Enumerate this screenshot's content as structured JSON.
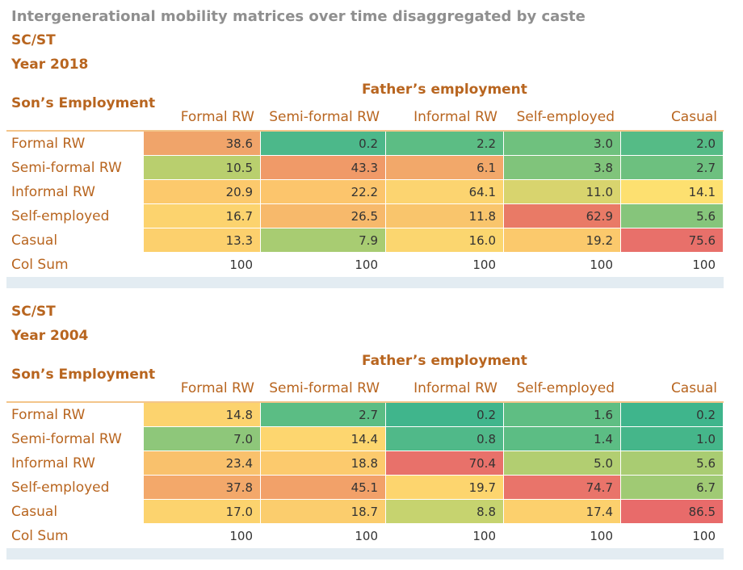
{
  "title": "Intergenerational mobility matrices over time disaggregated by caste",
  "tables": [
    {
      "group": "SC/ST",
      "year": "Year 2018",
      "column_header": "Father’s employment",
      "row_header": "Son’s Employment",
      "columns": [
        "Formal RW",
        "Semi-formal RW",
        "Informal RW",
        "Self-employed",
        "Casual"
      ],
      "rows": [
        {
          "label": "Formal RW",
          "cells": [
            "38.6",
            "0.2",
            "2.2",
            "3.0",
            "2.0"
          ],
          "colors": [
            "#f0a46a",
            "#4cb88a",
            "#5cbd84",
            "#6fc17e",
            "#55bb86"
          ]
        },
        {
          "label": "Semi-formal RW",
          "cells": [
            "10.5",
            "43.3",
            "6.1",
            "3.8",
            "2.7"
          ],
          "colors": [
            "#b9cf6e",
            "#f09a68",
            "#f2a86a",
            "#80c47b",
            "#6dc07f"
          ]
        },
        {
          "label": "Informal RW",
          "cells": [
            "20.9",
            "22.2",
            "64.1",
            "11.0",
            "14.1"
          ],
          "colors": [
            "#fcc96c",
            "#fcc56c",
            "#fcd470",
            "#d8d46e",
            "#fde070"
          ]
        },
        {
          "label": "Self-employed",
          "cells": [
            "16.7",
            "26.5",
            "11.8",
            "62.9",
            "5.6"
          ],
          "colors": [
            "#fcd36e",
            "#f7b96b",
            "#f9c56c",
            "#e97a66",
            "#86c57b"
          ]
        },
        {
          "label": "Casual",
          "cells": [
            "13.3",
            "7.9",
            "16.0",
            "19.2",
            "75.6"
          ],
          "colors": [
            "#fcd06d",
            "#a8cc72",
            "#fbd66f",
            "#fbc96c",
            "#e8706a"
          ]
        }
      ],
      "col_sum": {
        "label": "Col Sum",
        "cells": [
          "100",
          "100",
          "100",
          "100",
          "100"
        ]
      }
    },
    {
      "group": "SC/ST",
      "year": "Year 2004",
      "column_header": "Father’s employment",
      "row_header": "Son’s Employment",
      "columns": [
        "Formal RW",
        "Semi-formal RW",
        "Informal RW",
        "Self-employed",
        "Casual"
      ],
      "rows": [
        {
          "label": "Formal RW",
          "cells": [
            "14.8",
            "2.7",
            "0.2",
            "1.6",
            "0.2"
          ],
          "colors": [
            "#fcd36e",
            "#5bbd84",
            "#40b58c",
            "#5fbe83",
            "#3fb58c"
          ]
        },
        {
          "label": "Semi-formal RW",
          "cells": [
            "7.0",
            "14.4",
            "0.8",
            "1.4",
            "1.0"
          ],
          "colors": [
            "#8ec77a",
            "#fdd66f",
            "#50b989",
            "#5cbd84",
            "#45b68a"
          ]
        },
        {
          "label": "Informal RW",
          "cells": [
            "23.4",
            "18.8",
            "70.4",
            "5.0",
            "5.6"
          ],
          "colors": [
            "#f9c16c",
            "#fcca6d",
            "#e8716a",
            "#b2ce71",
            "#a9cc72"
          ]
        },
        {
          "label": "Self-employed",
          "cells": [
            "37.8",
            "45.1",
            "19.7",
            "74.7",
            "6.7"
          ],
          "colors": [
            "#f3a86a",
            "#f2a169",
            "#fdd56e",
            "#e9746a",
            "#a0ca74"
          ]
        },
        {
          "label": "Casual",
          "cells": [
            "17.0",
            "18.7",
            "8.8",
            "17.4",
            "86.5"
          ],
          "colors": [
            "#fcd36e",
            "#fbcd6d",
            "#c6d36f",
            "#fcd06d",
            "#e86b6a"
          ]
        }
      ],
      "col_sum": {
        "label": "Col Sum",
        "cells": [
          "100",
          "100",
          "100",
          "100",
          "100"
        ]
      }
    }
  ]
}
